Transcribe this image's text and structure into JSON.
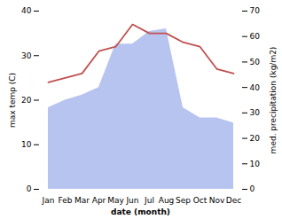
{
  "chart_data": {
    "type": "line",
    "categories": [
      "Jan",
      "Feb",
      "Mar",
      "Apr",
      "May",
      "Jun",
      "Jul",
      "Aug",
      "Sep",
      "Oct",
      "Nov",
      "Dec"
    ],
    "series": [
      {
        "type": "area",
        "axis": "y2",
        "color": "#b8c4f0",
        "values": [
          32,
          35,
          37,
          40,
          57,
          57,
          62,
          63,
          32,
          28,
          28,
          26
        ]
      },
      {
        "color": "#c0504d",
        "values": [
          24,
          25,
          26,
          31,
          32,
          37,
          35,
          35,
          33,
          32,
          27,
          26
        ]
      }
    ],
    "xlabel": "date (month)",
    "ylabel": "max temp (C)",
    "y2label": "med. precipitation (kg/m2)",
    "ylim": [
      0,
      40
    ],
    "yticks": [
      0,
      10,
      20,
      30,
      40
    ],
    "y2lim": [
      0,
      70
    ],
    "y2ticks": [
      0,
      10,
      20,
      30,
      40,
      50,
      60,
      70
    ],
    "grid": false
  }
}
